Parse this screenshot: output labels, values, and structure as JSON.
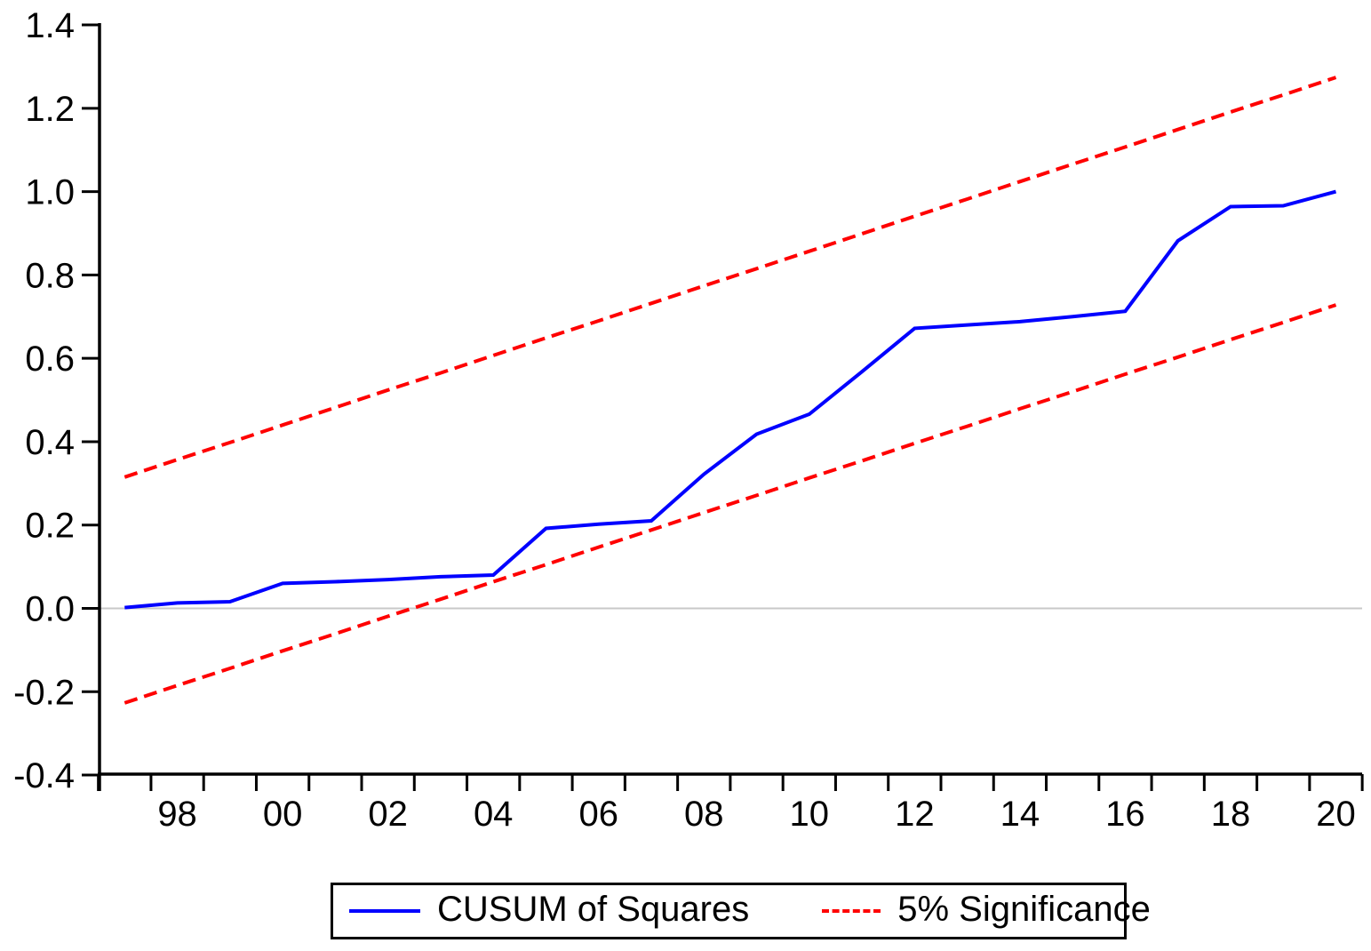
{
  "chart_data": {
    "type": "line",
    "title": "",
    "xlabel": "",
    "ylabel": "",
    "x": [
      1997,
      1998,
      1999,
      2000,
      2001,
      2002,
      2003,
      2004,
      2005,
      2006,
      2007,
      2008,
      2009,
      2010,
      2011,
      2012,
      2013,
      2014,
      2015,
      2016,
      2017,
      2018,
      2019,
      2020
    ],
    "series": [
      {
        "name": "CUSUM of Squares",
        "color": "#0000ff",
        "style": "solid",
        "values": [
          0.002,
          0.013,
          0.016,
          0.06,
          0.064,
          0.069,
          0.076,
          0.08,
          0.192,
          0.202,
          0.21,
          0.322,
          0.418,
          0.466,
          0.568,
          0.672,
          0.68,
          0.688,
          0.7,
          0.713,
          0.882,
          0.964,
          0.966,
          1.0
        ]
      },
      {
        "name": "5% Significance (upper bound)",
        "color": "#ff0000",
        "style": "dashed",
        "values": [
          0.315,
          0.357,
          0.398,
          0.44,
          0.482,
          0.524,
          0.565,
          0.607,
          0.649,
          0.69,
          0.732,
          0.774,
          0.815,
          0.857,
          0.899,
          0.941,
          0.982,
          1.024,
          1.066,
          1.107,
          1.149,
          1.191,
          1.232,
          1.274
        ]
      },
      {
        "name": "5% Significance (lower bound)",
        "color": "#ff0000",
        "style": "dashed",
        "values": [
          -0.227,
          -0.185,
          -0.144,
          -0.102,
          -0.061,
          -0.019,
          0.022,
          0.064,
          0.105,
          0.147,
          0.188,
          0.23,
          0.271,
          0.313,
          0.354,
          0.396,
          0.437,
          0.479,
          0.52,
          0.562,
          0.603,
          0.645,
          0.686,
          0.728
        ]
      }
    ],
    "ylim": [
      -0.4,
      1.4
    ],
    "y_ticks": [
      1.4,
      1.2,
      1.0,
      0.8,
      0.6,
      0.4,
      0.2,
      0.0,
      -0.2,
      -0.4
    ],
    "y_tick_labels": [
      "1.4",
      "1.2",
      "1.0",
      "0.8",
      "0.6",
      "0.4",
      "0.2",
      "0.0",
      "-0.2",
      "-0.4"
    ],
    "x_label_years": [
      1998,
      2000,
      2002,
      2004,
      2006,
      2008,
      2010,
      2012,
      2014,
      2016,
      2018,
      2020
    ],
    "x_tick_labels": [
      "98",
      "00",
      "02",
      "04",
      "06",
      "08",
      "10",
      "12",
      "14",
      "16",
      "18",
      "20"
    ],
    "grid": "zero-line-only",
    "legend_position": "bottom-center"
  },
  "legend": {
    "items": [
      {
        "label": "CUSUM of Squares",
        "color": "#0000ff",
        "style": "solid"
      },
      {
        "label": "5% Significance",
        "color": "#ff0000",
        "style": "dashed"
      }
    ]
  },
  "colors": {
    "cusum_line": "#0000ff",
    "significance_line": "#ff0000",
    "axis": "#000000",
    "zero_line": "#c8c8c8",
    "background": "#ffffff",
    "text": "#000000"
  }
}
